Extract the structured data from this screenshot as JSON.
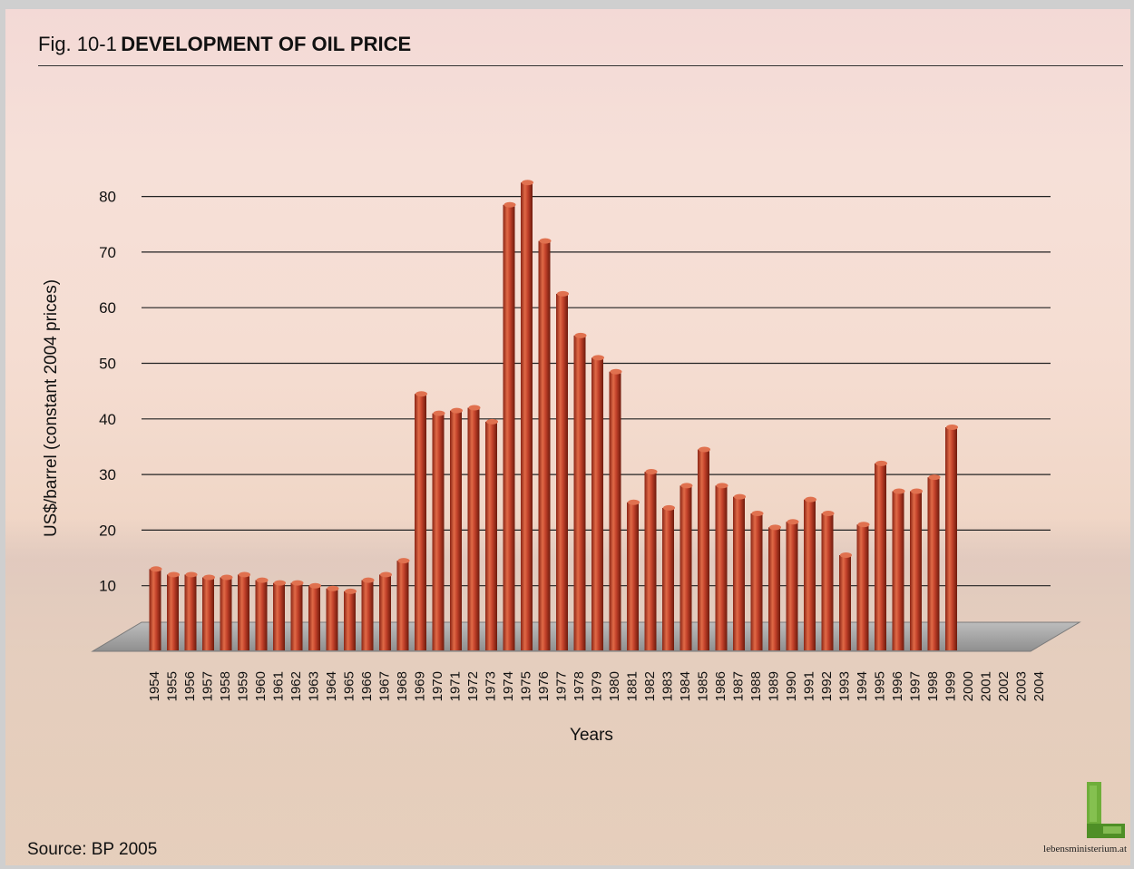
{
  "header": {
    "fig_prefix": "Fig. 10-1",
    "title": "DEVELOPMENT OF OIL PRICE"
  },
  "footer": {
    "source": "Source: BP 2005",
    "logo_text": "lebensministerium.at"
  },
  "colors": {
    "bar": "#c2412a",
    "bar_dark": "#7a1e10",
    "bar_light": "#e0714f",
    "grid": "#222222",
    "floor": "#a7a7a7"
  },
  "chart_data": {
    "type": "bar",
    "title": "DEVELOPMENT OF OIL PRICE",
    "xlabel": "Years",
    "ylabel": "US$/barrel (constant 2004 prices)",
    "ylim": [
      0,
      80
    ],
    "yticks": [
      10,
      20,
      30,
      40,
      50,
      60,
      70,
      80
    ],
    "grid": true,
    "categories": [
      "1954",
      "1955",
      "1956",
      "1957",
      "1958",
      "1959",
      "1960",
      "1961",
      "1962",
      "1963",
      "1964",
      "1965",
      "1966",
      "1967",
      "1968",
      "1969",
      "1970",
      "1971",
      "1972",
      "1973",
      "1974",
      "1975",
      "1976",
      "1977",
      "1978",
      "1979",
      "1980",
      "1881",
      "1982",
      "1983",
      "1984",
      "1985",
      "1986",
      "1987",
      "1988",
      "1989",
      "1990",
      "1991",
      "1992",
      "1993",
      "1994",
      "1995",
      "1996",
      "1997",
      "1998",
      "1999",
      "2000",
      "2001",
      "2002",
      "2003",
      "2004"
    ],
    "values": [
      13,
      12,
      12,
      11.5,
      11.5,
      12,
      11,
      10.5,
      10.5,
      10,
      9.5,
      9,
      11,
      12,
      14.5,
      44.5,
      41,
      41.5,
      42,
      39.5,
      78.5,
      82.5,
      72,
      62.5,
      55,
      51,
      48.5,
      25,
      30.5,
      24,
      28,
      34.5,
      28,
      26,
      23,
      20.5,
      21.5,
      25.5,
      23,
      15.5,
      21,
      32,
      27,
      27,
      29.5,
      38.5,
      0,
      0,
      0,
      0,
      0
    ]
  }
}
